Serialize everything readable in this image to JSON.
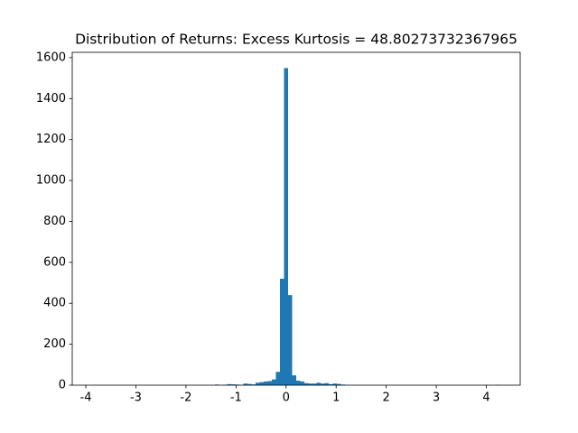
{
  "chart_data": {
    "type": "histogram",
    "title": "Distribution of Returns: Excess Kurtosis = 48.80273732367965",
    "bins": [
      -3.86,
      -3.77875,
      -3.6975,
      -3.61625,
      -3.535,
      -3.45375,
      -3.3725,
      -3.29125,
      -3.21,
      -3.12875,
      -3.0475,
      -2.96625,
      -2.885,
      -2.80375,
      -2.7225,
      -2.64125,
      -2.56,
      -2.47875,
      -2.3975,
      -2.31625,
      -2.235,
      -2.15375,
      -2.0725,
      -1.99125,
      -1.91,
      -1.82875,
      -1.7475,
      -1.66625,
      -1.585,
      -1.50375,
      -1.4225,
      -1.34125,
      -1.26,
      -1.17875,
      -1.0975,
      -1.01625,
      -0.935,
      -0.85375,
      -0.7725,
      -0.69125,
      -0.61,
      -0.52875,
      -0.4475,
      -0.36625,
      -0.285,
      -0.20375,
      -0.1225,
      -0.04125,
      0.04,
      0.12125,
      0.2025,
      0.28375,
      0.365,
      0.44625,
      0.5275,
      0.60875,
      0.69,
      0.77125,
      0.8525,
      0.93375,
      1.015,
      1.09625,
      1.1775,
      1.25875,
      1.34,
      1.42125,
      1.5025,
      1.58375,
      1.665,
      1.74625,
      1.8275,
      1.90875,
      1.99,
      2.07125,
      2.1525,
      2.23375,
      2.315,
      2.39625,
      2.4775,
      2.55875,
      2.64,
      2.72125,
      2.8025,
      2.88375,
      2.965,
      3.04625,
      3.1275,
      3.20875,
      3.29,
      3.37125,
      3.4525,
      3.53375,
      3.615,
      3.69625,
      3.7775,
      3.85875,
      3.94,
      4.02125,
      4.1025,
      4.18375,
      4.265
    ],
    "values": [
      1,
      0,
      0,
      0,
      0,
      0,
      0,
      0,
      0,
      0,
      0,
      0,
      0,
      0,
      0,
      0,
      0,
      0,
      0,
      0,
      0,
      0,
      0,
      0,
      0,
      0,
      0,
      0,
      0,
      0,
      3,
      0,
      2,
      5,
      4,
      3,
      1,
      8,
      6,
      4,
      12,
      15,
      18,
      20,
      28,
      65,
      520,
      1549,
      440,
      48,
      22,
      18,
      10,
      8,
      8,
      12,
      8,
      10,
      5,
      8,
      6,
      3,
      1,
      0,
      0,
      0,
      0,
      0,
      0,
      0,
      0,
      0,
      0,
      0,
      0,
      0,
      0,
      0,
      0,
      0,
      0,
      0,
      0,
      0,
      0,
      0,
      0,
      0,
      0,
      0,
      0,
      0,
      0,
      0,
      0,
      0,
      0,
      0,
      0,
      1
    ],
    "color": "#1f77b4",
    "xlim": [
      -4.27125,
      4.67625
    ],
    "xticks": [
      -4,
      -3,
      -2,
      -1,
      0,
      1,
      2,
      3,
      4
    ],
    "ylim": [
      0,
      1626
    ],
    "yticks": [
      0,
      200,
      400,
      600,
      800,
      1000,
      1200,
      1400,
      1600
    ]
  }
}
